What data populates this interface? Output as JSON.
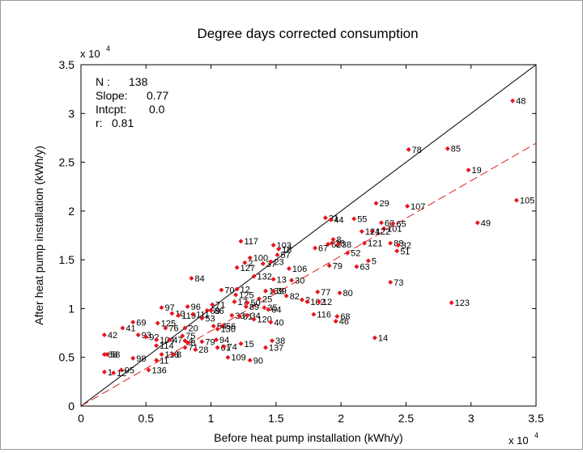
{
  "chart_data": {
    "type": "scatter",
    "title": "Degree days corrected consumption",
    "xlabel": "Before heat pump installation (kWh/y)",
    "ylabel": "After heat pump installation (kWh/y)",
    "x_multiplier_label": "x 10",
    "y_multiplier_label": "x 10",
    "multiplier_exponent": "4",
    "xlim": [
      0,
      3.5
    ],
    "ylim": [
      0,
      3.5
    ],
    "xticks": [
      "0",
      "0.5",
      "1",
      "1.5",
      "2",
      "2.5",
      "3",
      "3.5"
    ],
    "yticks": [
      "0",
      "0.5",
      "1",
      "1.5",
      "2",
      "2.5",
      "3",
      "3.5"
    ],
    "grid": false,
    "stats": [
      {
        "label": "N :",
        "value": "138"
      },
      {
        "label": "Slope:",
        "value": "0.77"
      },
      {
        "label": "Intcpt:",
        "value": "0.0"
      },
      {
        "label": "r:",
        "value": "0.81"
      }
    ],
    "lines": [
      {
        "style": "solid",
        "color": "#000000",
        "slope": 1.0,
        "intercept": 0
      },
      {
        "style": "dashed",
        "color": "#e02020",
        "slope": 0.77,
        "intercept": 0
      }
    ],
    "marker_color": "#e8161c",
    "points": [
      {
        "label": "48",
        "x": 3.32,
        "y": 3.13
      },
      {
        "label": "78",
        "x": 2.52,
        "y": 2.63
      },
      {
        "label": "85",
        "x": 2.82,
        "y": 2.64
      },
      {
        "label": "19",
        "x": 2.98,
        "y": 2.42
      },
      {
        "label": "105",
        "x": 3.35,
        "y": 2.11
      },
      {
        "label": "107",
        "x": 2.51,
        "y": 2.05
      },
      {
        "label": "49",
        "x": 3.05,
        "y": 1.88
      },
      {
        "label": "29",
        "x": 2.27,
        "y": 2.08
      },
      {
        "label": "55",
        "x": 2.1,
        "y": 1.92
      },
      {
        "label": "60",
        "x": 2.31,
        "y": 1.88
      },
      {
        "label": "65",
        "x": 2.4,
        "y": 1.87
      },
      {
        "label": "101",
        "x": 2.33,
        "y": 1.82
      },
      {
        "label": "122",
        "x": 2.24,
        "y": 1.79
      },
      {
        "label": "124",
        "x": 2.16,
        "y": 1.79
      },
      {
        "label": "31",
        "x": 1.88,
        "y": 1.93
      },
      {
        "label": "44",
        "x": 1.92,
        "y": 1.91
      },
      {
        "label": "121",
        "x": 2.18,
        "y": 1.67
      },
      {
        "label": "88",
        "x": 2.38,
        "y": 1.67
      },
      {
        "label": "32",
        "x": 2.44,
        "y": 1.65
      },
      {
        "label": "51",
        "x": 2.43,
        "y": 1.59
      },
      {
        "label": "8",
        "x": 1.94,
        "y": 1.71
      },
      {
        "label": "62",
        "x": 1.9,
        "y": 1.66
      },
      {
        "label": "28",
        "x": 1.93,
        "y": 1.67
      },
      {
        "label": "38",
        "x": 1.98,
        "y": 1.66
      },
      {
        "label": "67",
        "x": 1.8,
        "y": 1.62
      },
      {
        "label": "52",
        "x": 2.05,
        "y": 1.57
      },
      {
        "label": "79",
        "x": 1.91,
        "y": 1.44
      },
      {
        "label": "63",
        "x": 2.12,
        "y": 1.43
      },
      {
        "label": "5",
        "x": 2.21,
        "y": 1.49
      },
      {
        "label": "73",
        "x": 2.38,
        "y": 1.27
      },
      {
        "label": "123",
        "x": 2.85,
        "y": 1.06
      },
      {
        "label": "14",
        "x": 2.26,
        "y": 0.7
      },
      {
        "label": "117",
        "x": 1.23,
        "y": 1.69
      },
      {
        "label": "103",
        "x": 1.48,
        "y": 1.65
      },
      {
        "label": "18",
        "x": 1.52,
        "y": 1.61
      },
      {
        "label": "57",
        "x": 1.51,
        "y": 1.55
      },
      {
        "label": "100",
        "x": 1.3,
        "y": 1.52
      },
      {
        "label": "2",
        "x": 1.26,
        "y": 1.47
      },
      {
        "label": "37",
        "x": 1.4,
        "y": 1.46
      },
      {
        "label": "23",
        "x": 1.46,
        "y": 1.48
      },
      {
        "label": "127",
        "x": 1.2,
        "y": 1.42
      },
      {
        "label": "106",
        "x": 1.6,
        "y": 1.41
      },
      {
        "label": "132",
        "x": 1.33,
        "y": 1.33
      },
      {
        "label": "13",
        "x": 1.48,
        "y": 1.3
      },
      {
        "label": "30",
        "x": 1.62,
        "y": 1.29
      },
      {
        "label": "84",
        "x": 0.85,
        "y": 1.31
      },
      {
        "label": "70",
        "x": 1.08,
        "y": 1.19
      },
      {
        "label": "12",
        "x": 1.2,
        "y": 1.2
      },
      {
        "label": "139",
        "x": 1.42,
        "y": 1.18
      },
      {
        "label": "39",
        "x": 1.48,
        "y": 1.18
      },
      {
        "label": "125",
        "x": 1.19,
        "y": 1.14
      },
      {
        "label": "25",
        "x": 1.37,
        "y": 1.1
      },
      {
        "label": "82",
        "x": 1.58,
        "y": 1.13
      },
      {
        "label": "77",
        "x": 1.82,
        "y": 1.17
      },
      {
        "label": "80",
        "x": 1.99,
        "y": 1.16
      },
      {
        "label": "2",
        "x": 1.7,
        "y": 1.09
      },
      {
        "label": "102",
        "x": 1.74,
        "y": 1.07
      },
      {
        "label": "12",
        "x": 1.83,
        "y": 1.07
      },
      {
        "label": "17",
        "x": 1.18,
        "y": 1.07
      },
      {
        "label": "50",
        "x": 1.28,
        "y": 1.06
      },
      {
        "label": "71",
        "x": 1.01,
        "y": 1.04
      },
      {
        "label": "89",
        "x": 1.27,
        "y": 1.02
      },
      {
        "label": "35",
        "x": 1.41,
        "y": 1.01
      },
      {
        "label": "64",
        "x": 1.44,
        "y": 0.99
      },
      {
        "label": "116",
        "x": 1.79,
        "y": 0.94
      },
      {
        "label": "68",
        "x": 1.97,
        "y": 0.92
      },
      {
        "label": "46",
        "x": 1.96,
        "y": 0.87
      },
      {
        "label": "97",
        "x": 0.62,
        "y": 1.01
      },
      {
        "label": "96",
        "x": 0.82,
        "y": 1.02
      },
      {
        "label": "59",
        "x": 0.97,
        "y": 0.98
      },
      {
        "label": "86",
        "x": 1.0,
        "y": 0.98
      },
      {
        "label": "10",
        "x": 0.7,
        "y": 0.95
      },
      {
        "label": "119",
        "x": 0.75,
        "y": 0.93
      },
      {
        "label": "111",
        "x": 0.86,
        "y": 0.94
      },
      {
        "label": "53",
        "x": 0.93,
        "y": 0.9
      },
      {
        "label": "33",
        "x": 1.16,
        "y": 0.93
      },
      {
        "label": "81",
        "x": 1.22,
        "y": 0.92
      },
      {
        "label": "34",
        "x": 1.28,
        "y": 0.93
      },
      {
        "label": "120",
        "x": 1.33,
        "y": 0.89
      },
      {
        "label": "40",
        "x": 1.46,
        "y": 0.86
      },
      {
        "label": "69",
        "x": 0.4,
        "y": 0.86
      },
      {
        "label": "41",
        "x": 0.32,
        "y": 0.8
      },
      {
        "label": "125",
        "x": 0.59,
        "y": 0.85
      },
      {
        "label": "76",
        "x": 0.65,
        "y": 0.8
      },
      {
        "label": "20",
        "x": 0.8,
        "y": 0.8
      },
      {
        "label": "54",
        "x": 1.02,
        "y": 0.82
      },
      {
        "label": "56",
        "x": 1.09,
        "y": 0.82
      },
      {
        "label": "130",
        "x": 1.05,
        "y": 0.79
      },
      {
        "label": "93",
        "x": 0.44,
        "y": 0.73
      },
      {
        "label": "92",
        "x": 0.5,
        "y": 0.71
      },
      {
        "label": "42",
        "x": 0.18,
        "y": 0.73
      },
      {
        "label": "104",
        "x": 0.58,
        "y": 0.68
      },
      {
        "label": "47",
        "x": 0.68,
        "y": 0.68
      },
      {
        "label": "75",
        "x": 0.78,
        "y": 0.72
      },
      {
        "label": "4",
        "x": 0.8,
        "y": 0.67
      },
      {
        "label": "3",
        "x": 0.82,
        "y": 0.65
      },
      {
        "label": "79",
        "x": 0.93,
        "y": 0.66
      },
      {
        "label": "94",
        "x": 1.04,
        "y": 0.68
      },
      {
        "label": "15",
        "x": 1.23,
        "y": 0.64
      },
      {
        "label": "38",
        "x": 1.47,
        "y": 0.67
      },
      {
        "label": "137",
        "x": 1.42,
        "y": 0.6
      },
      {
        "label": "114",
        "x": 0.58,
        "y": 0.62
      },
      {
        "label": "71",
        "x": 0.8,
        "y": 0.6
      },
      {
        "label": "28",
        "x": 0.88,
        "y": 0.58
      },
      {
        "label": "61",
        "x": 1.05,
        "y": 0.6
      },
      {
        "label": "74",
        "x": 1.1,
        "y": 0.61
      },
      {
        "label": "118",
        "x": 0.62,
        "y": 0.53
      },
      {
        "label": "8",
        "x": 0.71,
        "y": 0.53
      },
      {
        "label": "68",
        "x": 0.18,
        "y": 0.53
      },
      {
        "label": "58",
        "x": 0.2,
        "y": 0.53
      },
      {
        "label": "98",
        "x": 0.4,
        "y": 0.49
      },
      {
        "label": "109",
        "x": 1.13,
        "y": 0.5
      },
      {
        "label": "90",
        "x": 1.3,
        "y": 0.47
      },
      {
        "label": "11",
        "x": 0.58,
        "y": 0.47
      },
      {
        "label": "1",
        "x": 0.18,
        "y": 0.35
      },
      {
        "label": "95",
        "x": 0.31,
        "y": 0.37
      },
      {
        "label": "136",
        "x": 0.52,
        "y": 0.37
      },
      {
        "label": "12",
        "x": 0.25,
        "y": 0.34
      }
    ]
  }
}
